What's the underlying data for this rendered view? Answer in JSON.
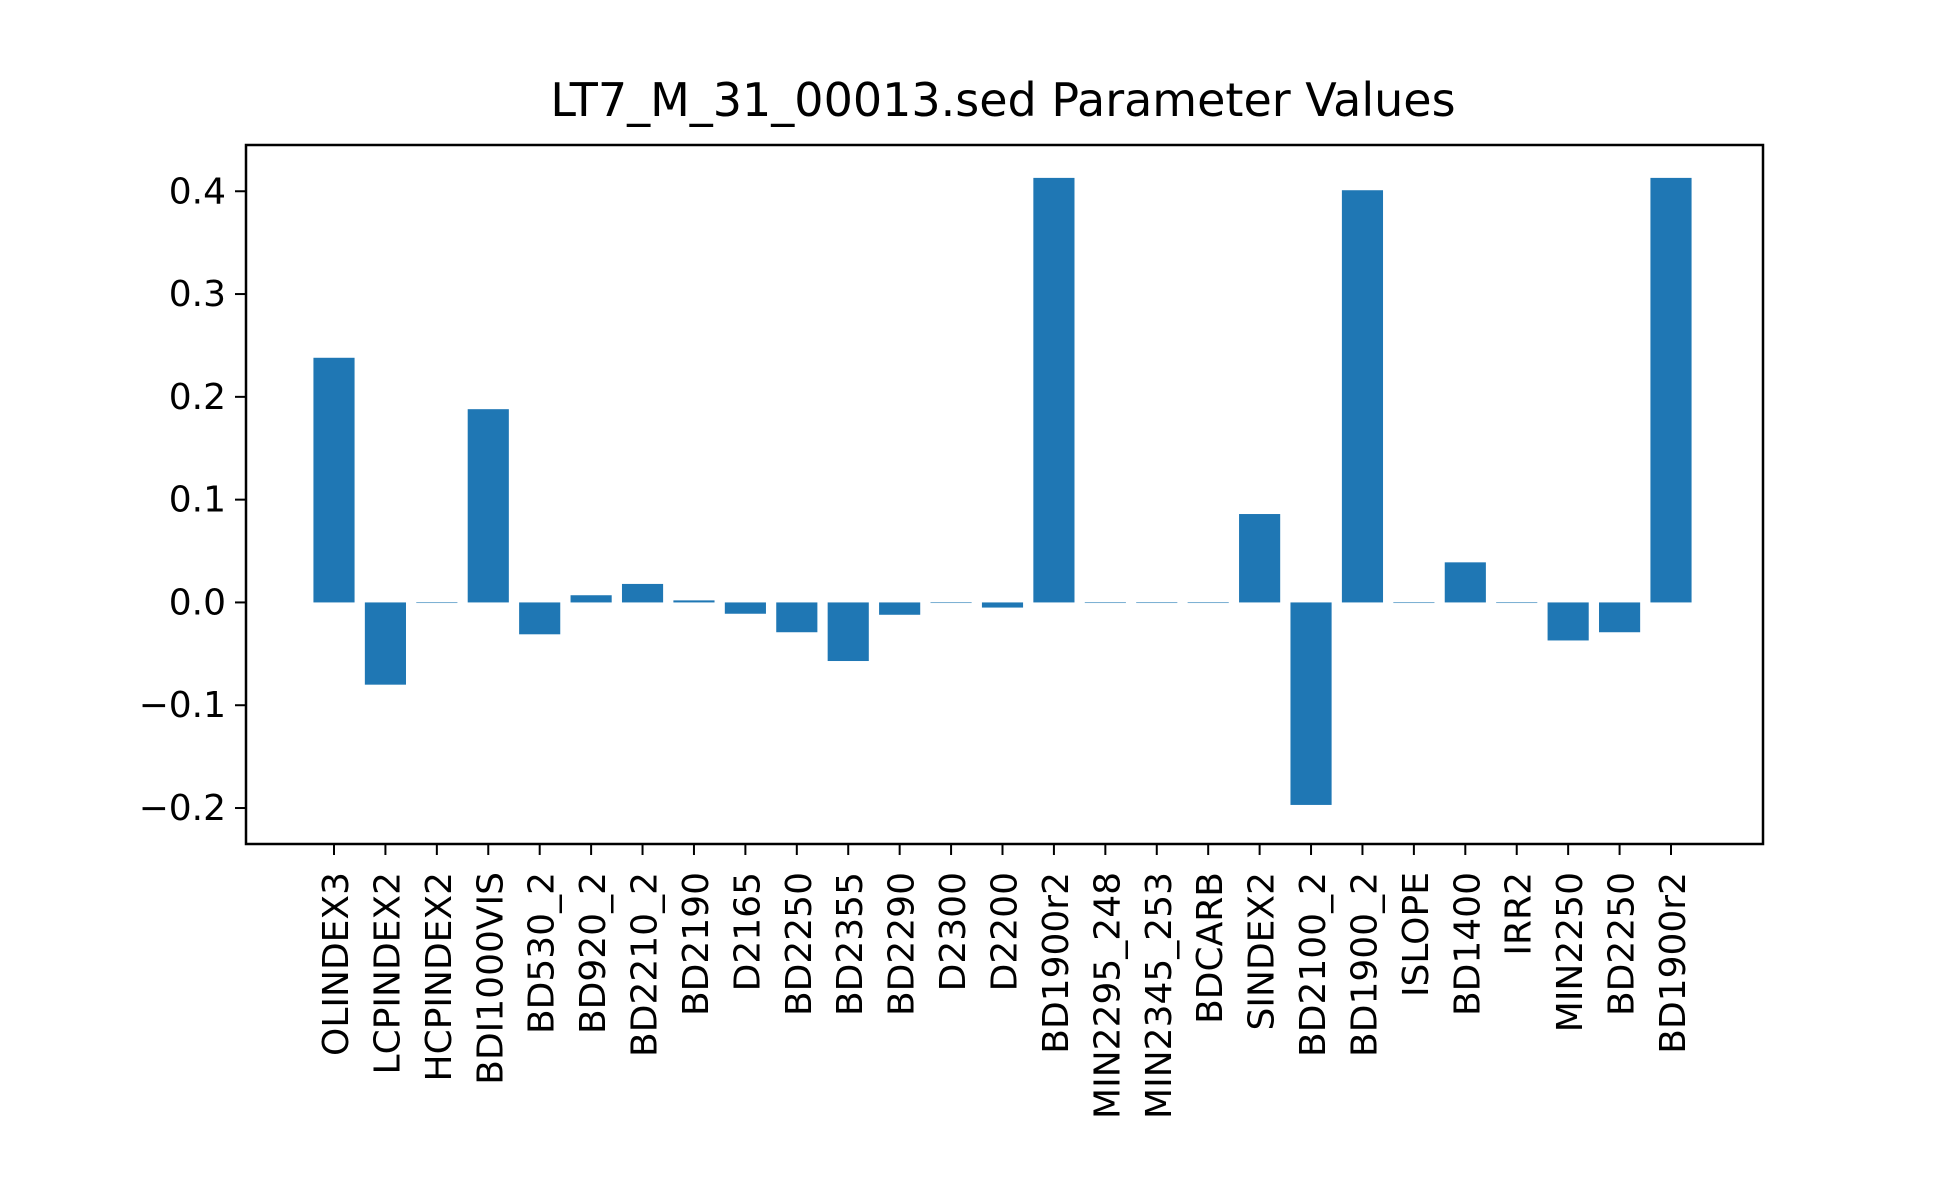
{
  "chart_data": {
    "type": "bar",
    "title": "LT7_M_31_00013.sed Parameter Values",
    "xlabel": "",
    "ylabel": "",
    "ylim": [
      -0.235,
      0.445
    ],
    "yticks": [
      -0.2,
      -0.1,
      0.0,
      0.1,
      0.2,
      0.3,
      0.4
    ],
    "ytick_labels": [
      "−0.2",
      "−0.1",
      "0.0",
      "0.1",
      "0.2",
      "0.3",
      "0.4"
    ],
    "grid": false,
    "bar_color": "#1f77b4",
    "categories": [
      "OLINDEX3",
      "LCPINDEX2",
      "HCPINDEX2",
      "BDI1000VIS",
      "BD530_2",
      "BD920_2",
      "BD2210_2",
      "BD2190",
      "D2165",
      "BD2250",
      "BD2355",
      "BD2290",
      "D2300",
      "D2200",
      "BD1900r2",
      "MIN2295_248",
      "MIN2345_253",
      "BDCARB",
      "SINDEX2",
      "BD2100_2",
      "BD1900_2",
      "ISLOPE",
      "BD1400",
      "IRR2",
      "MIN2250",
      "BD2250",
      "BD1900r2"
    ],
    "values": [
      0.238,
      -0.08,
      0.0,
      0.188,
      -0.031,
      0.007,
      0.018,
      0.002,
      -0.011,
      -0.029,
      -0.057,
      -0.012,
      0.0,
      -0.005,
      0.413,
      0.0,
      0.0,
      0.0,
      0.086,
      -0.197,
      0.401,
      0.0,
      0.039,
      0.0,
      -0.037,
      -0.029,
      0.413
    ]
  }
}
